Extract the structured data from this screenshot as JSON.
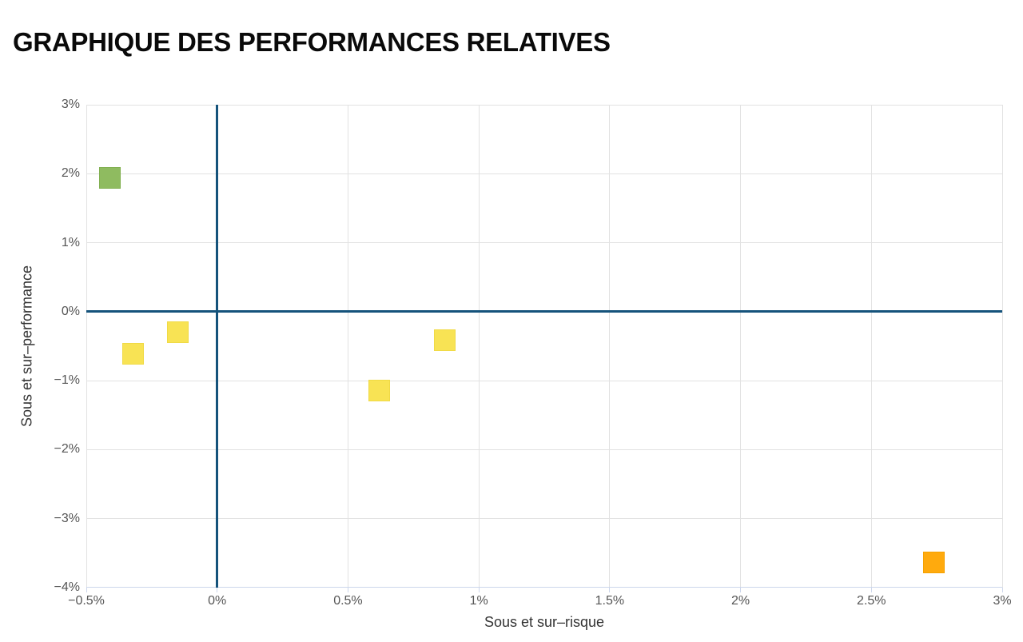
{
  "page": {
    "background": "#ffffff"
  },
  "header": {
    "title": "GRAPHIQUE DES PERFORMANCES RELATIVES"
  },
  "chart_data": {
    "type": "scatter",
    "title": "GRAPHIQUE DES PERFORMANCES RELATIVES",
    "xlabel": "Sous et sur–risque",
    "ylabel": "Sous et sur–performance",
    "xlim": [
      -0.5,
      3
    ],
    "ylim": [
      -4,
      3
    ],
    "grid": true,
    "legend": "none",
    "x_unit": "%",
    "y_unit": "%",
    "x_ticks": [
      {
        "value": -0.5,
        "label": "−0.5%"
      },
      {
        "value": 0,
        "label": "0%"
      },
      {
        "value": 0.5,
        "label": "0.5%"
      },
      {
        "value": 1,
        "label": "1%"
      },
      {
        "value": 1.5,
        "label": "1.5%"
      },
      {
        "value": 2,
        "label": "2%"
      },
      {
        "value": 2.5,
        "label": "2.5%"
      },
      {
        "value": 3,
        "label": "3%"
      }
    ],
    "y_ticks": [
      {
        "value": 3,
        "label": "3%"
      },
      {
        "value": 2,
        "label": "2%"
      },
      {
        "value": 1,
        "label": "1%"
      },
      {
        "value": 0,
        "label": "0%"
      },
      {
        "value": -1,
        "label": "−1%"
      },
      {
        "value": -2,
        "label": "−2%"
      },
      {
        "value": -3,
        "label": "−3%"
      },
      {
        "value": -4,
        "label": "−4%"
      }
    ],
    "zero_lines": {
      "x": 0,
      "y": 0
    },
    "marker": {
      "shape": "square",
      "size": 27
    },
    "points": [
      {
        "x": -0.41,
        "y": 1.94,
        "color": "#8fbb60",
        "border": "#82b051",
        "name": "point-green"
      },
      {
        "x": -0.32,
        "y": -0.61,
        "color": "#f8e354",
        "border": "#f0da45",
        "name": "point-yellow-1"
      },
      {
        "x": -0.15,
        "y": -0.3,
        "color": "#f8e354",
        "border": "#f0da45",
        "name": "point-yellow-2"
      },
      {
        "x": 0.62,
        "y": -1.14,
        "color": "#f8e354",
        "border": "#f0da45",
        "name": "point-yellow-3"
      },
      {
        "x": 0.87,
        "y": -0.41,
        "color": "#f8e354",
        "border": "#f0da45",
        "name": "point-yellow-4"
      },
      {
        "x": 2.74,
        "y": -3.63,
        "color": "#ffaa0d",
        "border": "#f5a100",
        "name": "point-orange"
      }
    ],
    "colors": {
      "zero_line": "#15537b",
      "gridline": "#e2e2e2",
      "axis_line": "#ccd6eb",
      "tick_label": "#555555",
      "axis_title": "#333333",
      "title": "#0a0a0a"
    }
  }
}
